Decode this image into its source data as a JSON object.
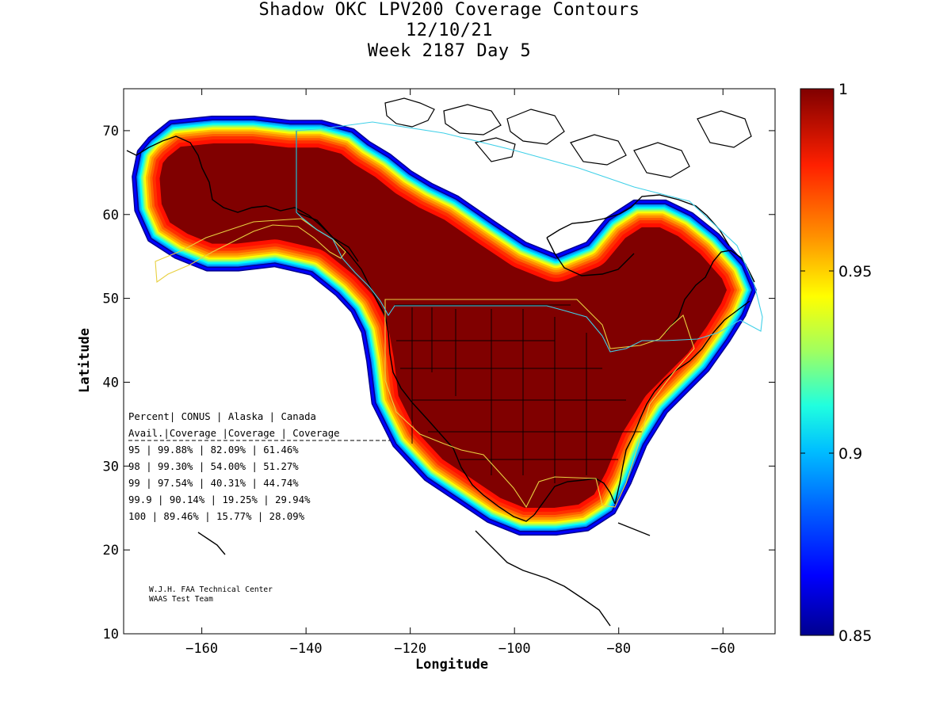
{
  "title": {
    "line1": "Shadow OKC LPV200 Coverage Contours",
    "line2": "12/10/21",
    "line3": "Week 2187 Day 5"
  },
  "axes": {
    "xlabel": "Longitude",
    "ylabel": "Latitude",
    "xlim": [
      -175,
      -50
    ],
    "ylim": [
      10,
      75
    ],
    "xticks": [
      -160,
      -140,
      -120,
      -100,
      -80,
      -60
    ],
    "yticks": [
      10,
      20,
      30,
      40,
      50,
      60,
      70
    ]
  },
  "colorbar": {
    "range": [
      0.85,
      1
    ],
    "ticks": [
      {
        "value": 1,
        "label": "1"
      },
      {
        "value": 0.95,
        "label": "0.95"
      },
      {
        "value": 0.9,
        "label": "0.9"
      },
      {
        "value": 0.85,
        "label": "0.85"
      }
    ],
    "colormap": "jet",
    "colors": [
      "#00008f",
      "#0000ff",
      "#0080ff",
      "#00ffff",
      "#80ff80",
      "#ffff00",
      "#ff8000",
      "#ff0000",
      "#800000"
    ]
  },
  "stats_table": {
    "header1": [
      "Percent",
      "CONUS",
      "Alaska",
      "Canada"
    ],
    "header2": [
      "Avail.",
      "Coverage",
      "Coverage",
      "Coverage"
    ],
    "rows": [
      [
        "95",
        "99.88%",
        "82.09%",
        "61.46%"
      ],
      [
        "98",
        "99.30%",
        "54.00%",
        "51.27%"
      ],
      [
        "99",
        "97.54%",
        "40.31%",
        "44.74%"
      ],
      [
        "99.9",
        "90.14%",
        "19.25%",
        "29.94%"
      ],
      [
        "100",
        "89.46%",
        "15.77%",
        "28.09%"
      ]
    ]
  },
  "credit": {
    "line1": "W.J.H. FAA Technical Center",
    "line2": "WAAS Test Team"
  },
  "chart_data": {
    "type": "heatmap",
    "title": "Shadow OKC LPV200 Coverage Contours",
    "xlabel": "Longitude",
    "ylabel": "Latitude",
    "xlim": [
      -175,
      -50
    ],
    "ylim": [
      10,
      75
    ],
    "value_range": [
      0.85,
      1
    ],
    "coverage_region_outline": [
      [
        -170,
        69
      ],
      [
        -166,
        71
      ],
      [
        -158,
        71.5
      ],
      [
        -150,
        71.5
      ],
      [
        -143,
        71
      ],
      [
        -137,
        71
      ],
      [
        -131,
        70
      ],
      [
        -128,
        68.5
      ],
      [
        -124,
        67
      ],
      [
        -120,
        65
      ],
      [
        -116,
        63.5
      ],
      [
        -111,
        62
      ],
      [
        -104,
        59
      ],
      [
        -98,
        56.5
      ],
      [
        -92,
        55
      ],
      [
        -86,
        56.5
      ],
      [
        -82,
        59.5
      ],
      [
        -77,
        61.5
      ],
      [
        -71,
        61.5
      ],
      [
        -66,
        60
      ],
      [
        -61,
        57.5
      ],
      [
        -56,
        54
      ],
      [
        -54,
        51
      ],
      [
        -56,
        48
      ],
      [
        -59,
        45
      ],
      [
        -63,
        41.5
      ],
      [
        -67,
        39
      ],
      [
        -71,
        36.5
      ],
      [
        -75,
        32.5
      ],
      [
        -78,
        28
      ],
      [
        -81,
        24.5
      ],
      [
        -86,
        22.5
      ],
      [
        -92,
        22
      ],
      [
        -99,
        22
      ],
      [
        -105,
        23.5
      ],
      [
        -111,
        26
      ],
      [
        -117,
        28.5
      ],
      [
        -123,
        32.5
      ],
      [
        -127,
        37.5
      ],
      [
        -128,
        42.5
      ],
      [
        -129,
        46
      ],
      [
        -131,
        48.5
      ],
      [
        -134,
        50.5
      ],
      [
        -139,
        53
      ],
      [
        -146,
        54
      ],
      [
        -153,
        53.5
      ],
      [
        -159,
        53.5
      ],
      [
        -165,
        55
      ],
      [
        -170,
        57
      ],
      [
        -172.5,
        60.5
      ],
      [
        -173,
        64.5
      ],
      [
        -172,
        67.5
      ]
    ],
    "max_coverage_regions": [
      "CONUS",
      "southern Alaska",
      "southern Canada"
    ]
  }
}
